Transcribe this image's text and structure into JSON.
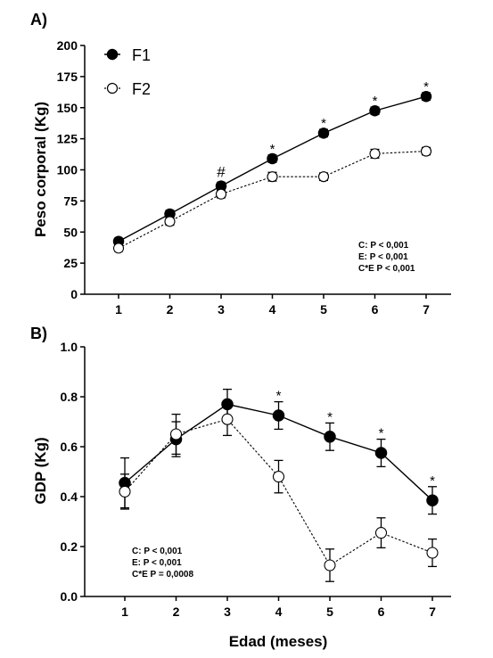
{
  "chart_data": [
    {
      "type": "line",
      "panel_label": "A)",
      "ylabel": "Peso corporal (Kg)",
      "xlabel": "",
      "ylim": [
        0,
        200
      ],
      "yticks": [
        0,
        25,
        50,
        75,
        100,
        125,
        150,
        175,
        200
      ],
      "x": [
        1,
        2,
        3,
        4,
        5,
        6,
        7
      ],
      "series": [
        {
          "name": "F1",
          "marker": "filled-circle",
          "line": "solid",
          "values": [
            42.5,
            64.5,
            87,
            109,
            129.5,
            147.5,
            159
          ],
          "errors": [
            2.5,
            3,
            3,
            3,
            3,
            3,
            3
          ]
        },
        {
          "name": "F2",
          "marker": "open-circle",
          "line": "dashed",
          "values": [
            37,
            58.5,
            80.5,
            94.5,
            94.5,
            113,
            115
          ],
          "errors": [
            2.5,
            3,
            3,
            3.5,
            3,
            3.5,
            3
          ]
        }
      ],
      "significance": [
        {
          "x": 3,
          "symbol": "#"
        },
        {
          "x": 4,
          "symbol": "*"
        },
        {
          "x": 5,
          "symbol": "*"
        },
        {
          "x": 6,
          "symbol": "*"
        },
        {
          "x": 7,
          "symbol": "*"
        }
      ],
      "stats": [
        "C: P < 0,001",
        "E: P < 0,001",
        "C*E P < 0,001"
      ],
      "legend": "top-left",
      "grid": false
    },
    {
      "type": "line",
      "panel_label": "B)",
      "ylabel": "GDP (Kg)",
      "xlabel": "Edad (meses)",
      "ylim": [
        0,
        1.0
      ],
      "yticks": [
        0.0,
        0.2,
        0.4,
        0.6,
        0.8,
        1.0
      ],
      "x": [
        1,
        2,
        3,
        4,
        5,
        6,
        7
      ],
      "series": [
        {
          "name": "F1",
          "marker": "filled-circle",
          "line": "solid",
          "values": [
            0.455,
            0.63,
            0.77,
            0.725,
            0.64,
            0.575,
            0.385
          ],
          "errors": [
            0.1,
            0.07,
            0.06,
            0.055,
            0.055,
            0.055,
            0.055
          ]
        },
        {
          "name": "F2",
          "marker": "open-circle",
          "line": "dashed",
          "values": [
            0.42,
            0.65,
            0.71,
            0.48,
            0.125,
            0.255,
            0.175
          ],
          "errors": [
            0.07,
            0.08,
            0.065,
            0.065,
            0.065,
            0.06,
            0.055
          ]
        }
      ],
      "significance": [
        {
          "x": 4,
          "symbol": "*"
        },
        {
          "x": 5,
          "symbol": "*"
        },
        {
          "x": 6,
          "symbol": "*"
        },
        {
          "x": 7,
          "symbol": "*"
        }
      ],
      "stats": [
        "C: P < 0,001",
        "E: P < 0,001",
        "C*E P = 0,0008"
      ],
      "grid": false
    }
  ]
}
